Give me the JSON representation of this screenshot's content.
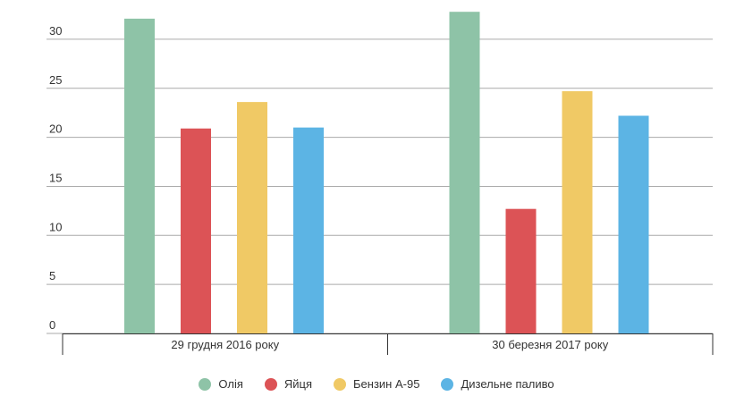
{
  "chart_data": {
    "type": "bar",
    "categories": [
      "29 грудня 2016 року",
      "30 березня 2017 року"
    ],
    "series": [
      {
        "name": "Олія",
        "color": "#8ec3a7",
        "values": [
          32.1,
          32.8
        ]
      },
      {
        "name": "Яйця",
        "color": "#dc5356",
        "values": [
          20.9,
          12.7
        ]
      },
      {
        "name": "Бензин А-95",
        "color": "#f0c965",
        "values": [
          23.6,
          24.7
        ]
      },
      {
        "name": "Дизельне паливо",
        "color": "#5cb4e4",
        "values": [
          21.0,
          22.2
        ]
      }
    ],
    "ylim": [
      0,
      33
    ],
    "yticks": [
      0,
      5,
      10,
      15,
      20,
      25,
      30
    ],
    "grid": true,
    "legend": "bottom"
  }
}
